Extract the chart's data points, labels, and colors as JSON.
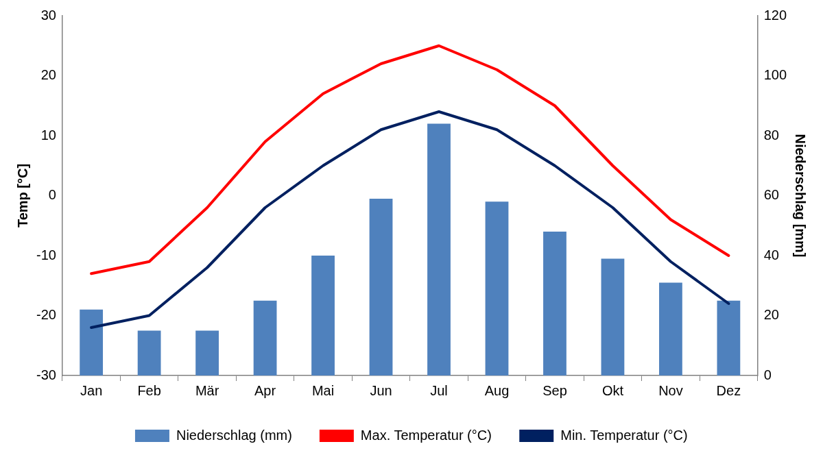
{
  "chart_data": {
    "type": "line",
    "categories": [
      "Jan",
      "Feb",
      "Mär",
      "Apr",
      "Mai",
      "Jun",
      "Jul",
      "Aug",
      "Sep",
      "Okt",
      "Nov",
      "Dez"
    ],
    "series": [
      {
        "name": "Niederschlag (mm)",
        "type": "bar",
        "axis": "y2",
        "color": "#4f81bd",
        "values": [
          22,
          15,
          15,
          25,
          40,
          59,
          84,
          58,
          48,
          39,
          31,
          25
        ]
      },
      {
        "name": "Max. Temperatur (°C)",
        "color": "#ff0000",
        "values": [
          -13,
          -11,
          -2,
          9,
          17,
          22,
          25,
          21,
          15,
          5,
          -4,
          -10
        ]
      },
      {
        "name": "Min. Temperatur (°C)",
        "color": "#002060",
        "values": [
          -22,
          -20,
          -12,
          -2,
          5,
          11,
          14,
          11,
          5,
          -2,
          -11,
          -18
        ]
      }
    ],
    "ylabel": "Temp [°C]",
    "y2label": "Niederschlag [mm]",
    "ylim": [
      -30,
      30
    ],
    "yticks": [
      -30,
      -20,
      -10,
      0,
      10,
      20,
      30
    ],
    "y2lim": [
      0,
      120
    ],
    "y2ticks": [
      0,
      20,
      40,
      60,
      80,
      100,
      120
    ],
    "grid": false,
    "legend": "bottom",
    "marker": "none",
    "line_style": "solid"
  }
}
